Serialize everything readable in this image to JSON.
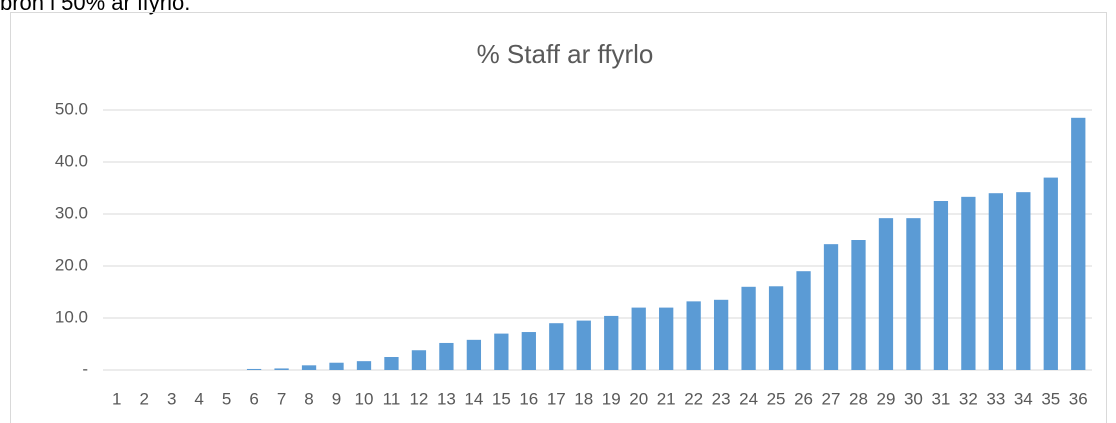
{
  "page_text": "bron i 50% ar ffyrlo.",
  "chart_data": {
    "type": "bar",
    "title": "% Staff ar ffyrlo",
    "categories": [
      "1",
      "2",
      "3",
      "4",
      "5",
      "6",
      "7",
      "8",
      "9",
      "10",
      "11",
      "12",
      "13",
      "14",
      "15",
      "16",
      "17",
      "18",
      "19",
      "20",
      "21",
      "22",
      "23",
      "24",
      "25",
      "26",
      "27",
      "28",
      "29",
      "30",
      "31",
      "32",
      "33",
      "34",
      "35",
      "36"
    ],
    "values": [
      0,
      0,
      0,
      0,
      0,
      0.2,
      0.3,
      0.9,
      1.4,
      1.7,
      2.5,
      3.8,
      5.2,
      5.8,
      7.0,
      7.3,
      9.0,
      9.5,
      10.4,
      12.0,
      12.0,
      13.2,
      13.5,
      16.0,
      16.1,
      19.0,
      24.2,
      25.0,
      29.2,
      29.2,
      32.5,
      33.3,
      34.0,
      34.2,
      37.0,
      48.5
    ],
    "color": "#5b9bd5",
    "ylim": [
      0,
      50
    ],
    "yticks": [
      {
        "value": 0,
        "label": "-"
      },
      {
        "value": 10,
        "label": "10.0"
      },
      {
        "value": 20,
        "label": "20.0"
      },
      {
        "value": 30,
        "label": "30.0"
      },
      {
        "value": 40,
        "label": "40.0"
      },
      {
        "value": 50,
        "label": "50.0"
      }
    ],
    "grid": true
  }
}
